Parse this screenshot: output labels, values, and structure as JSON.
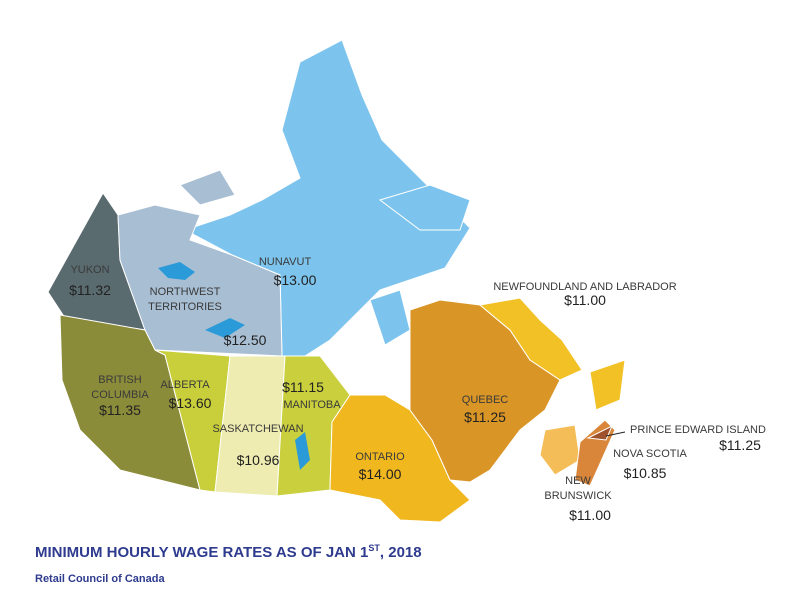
{
  "title": {
    "text": "MINIMUM HOURLY WAGE RATES AS OF JAN 1",
    "superscript": "ST",
    "suffix": ", 2018"
  },
  "source": "Retail Council of Canada",
  "regions": [
    {
      "name": [
        "YUKON"
      ],
      "wage": "$11.32"
    },
    {
      "name": [
        "NORTHWEST",
        "TERRITORIES"
      ],
      "wage": "$12.50"
    },
    {
      "name": [
        "NUNAVUT"
      ],
      "wage": "$13.00"
    },
    {
      "name": [
        "NEWFOUNDLAND AND LABRADOR"
      ],
      "wage": "$11.00"
    },
    {
      "name": [
        "BRITISH",
        "COLUMBIA"
      ],
      "wage": "$11.35"
    },
    {
      "name": [
        "ALBERTA"
      ],
      "wage": "$13.60"
    },
    {
      "name": [
        "MANITOBA"
      ],
      "wage": "$11.15"
    },
    {
      "name": [
        "QUEBEC"
      ],
      "wage": "$11.25"
    },
    {
      "name": [
        "SASKATCHEWAN"
      ],
      "wage": "$10.96"
    },
    {
      "name": [
        "ONTARIO"
      ],
      "wage": "$14.00"
    },
    {
      "name": [
        "PRINCE EDWARD ISLAND"
      ],
      "wage": "$11.25"
    },
    {
      "name": [
        "NOVA SCOTIA"
      ],
      "wage": "$10.85"
    },
    {
      "name": [
        "NEW",
        "BRUNSWICK"
      ],
      "wage": "$11.00"
    }
  ]
}
